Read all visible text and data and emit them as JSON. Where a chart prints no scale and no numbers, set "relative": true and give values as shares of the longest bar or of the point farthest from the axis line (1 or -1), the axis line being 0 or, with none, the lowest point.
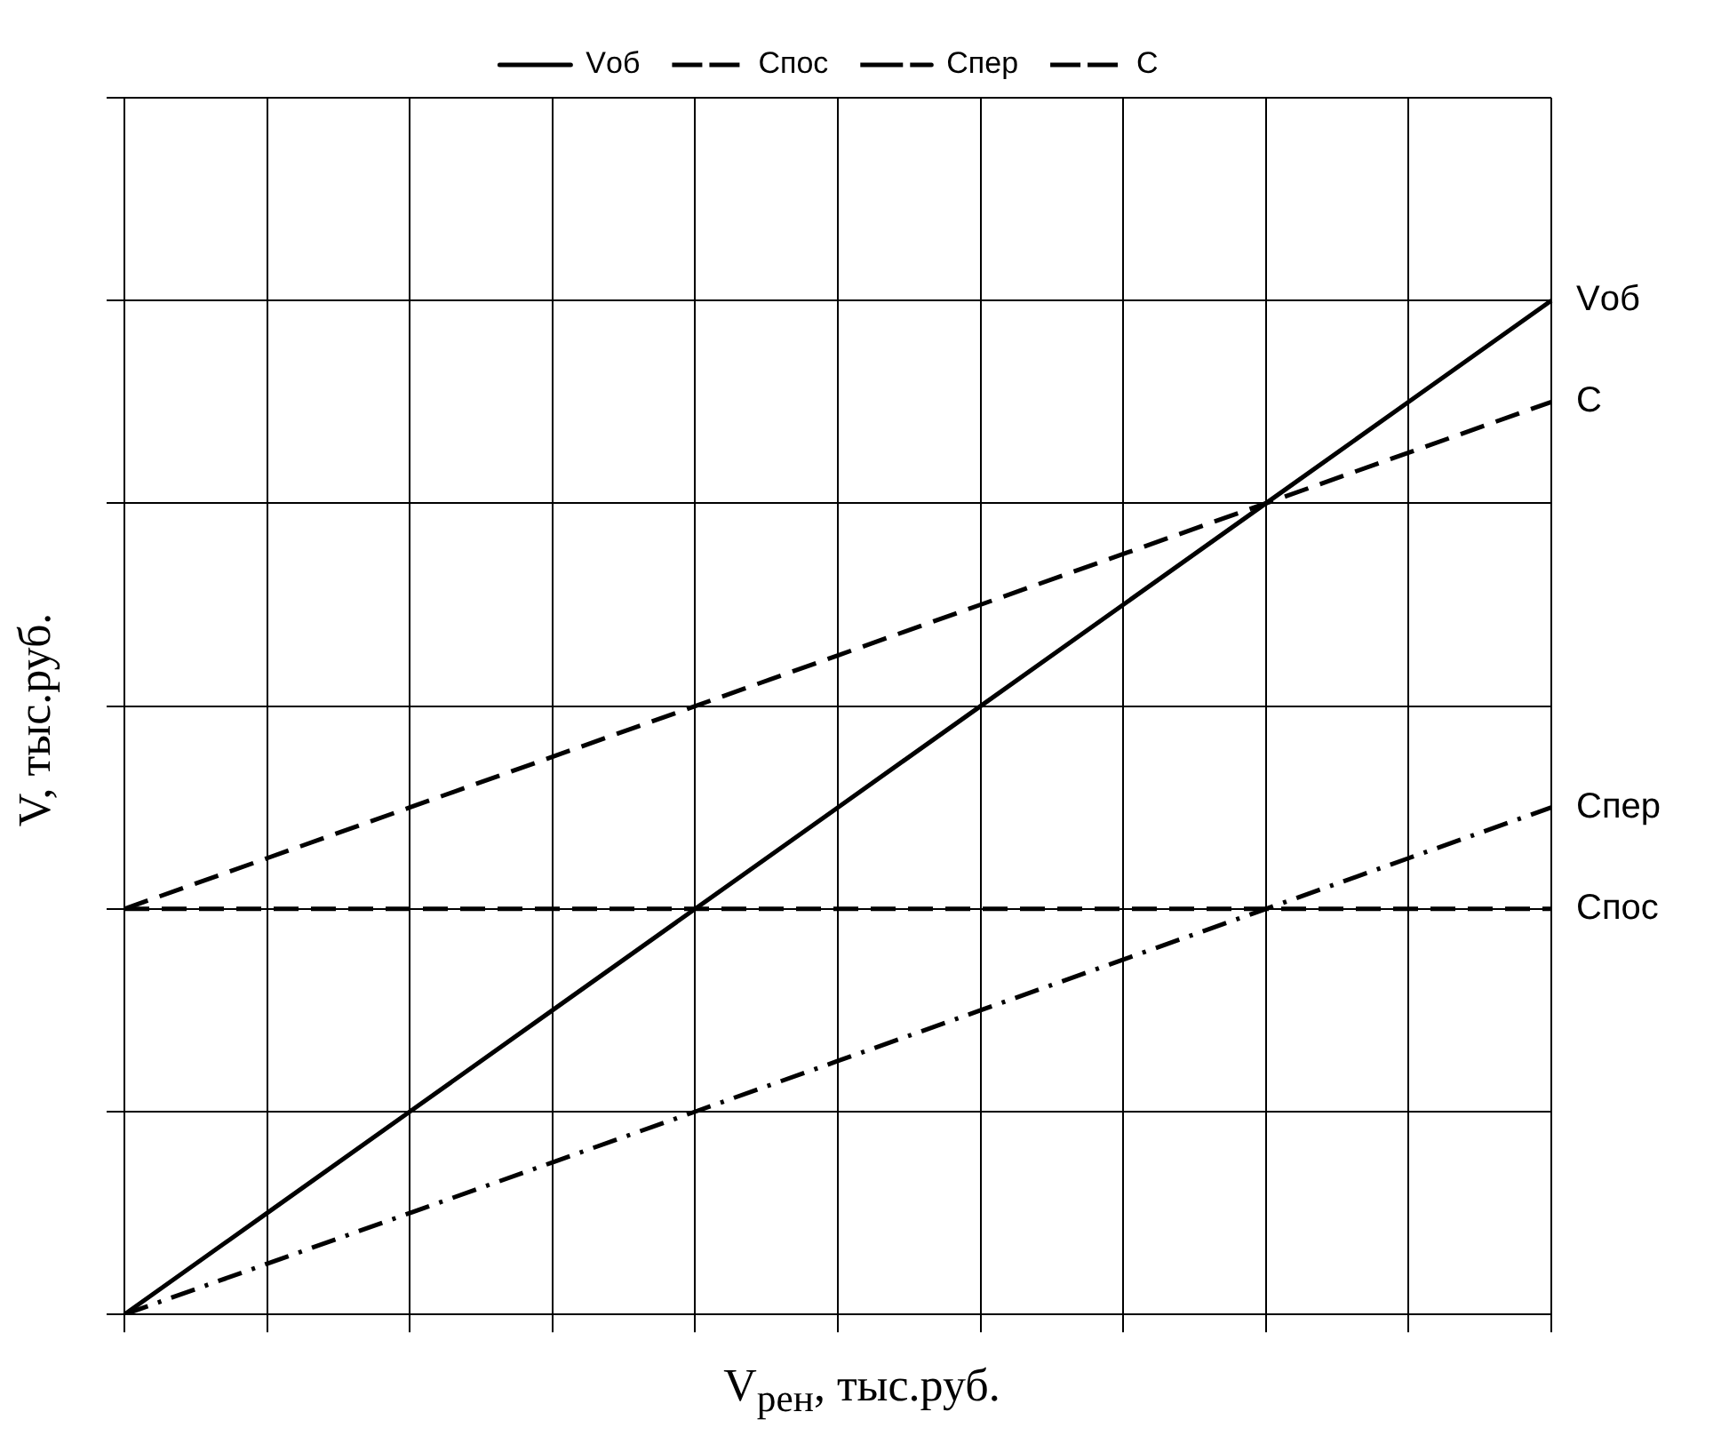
{
  "chart_data": {
    "type": "line",
    "relative": true,
    "xlabel": "V$_{рен}$, тыс.руб.",
    "ylabel": "V, тыс.руб.",
    "categories": [
      null,
      null,
      null,
      null,
      null,
      null,
      null,
      null,
      null,
      null,
      null
    ],
    "grid": true,
    "legend": "top",
    "marker": "none",
    "series": [
      {
        "name": "Vоб",
        "color": "#000000",
        "line_style": "solid",
        "values": [
          0,
          0.1,
          0.2,
          0.3,
          0.4,
          0.5,
          0.6,
          0.7,
          0.8,
          0.9,
          1
        ]
      },
      {
        "name": "Спос",
        "color": "#000000",
        "line_style": "dashed",
        "values": [
          0.4,
          0.4,
          0.4,
          0.4,
          0.4,
          0.4,
          0.4,
          0.4,
          0.4,
          0.4,
          0.4
        ]
      },
      {
        "name": "Спер",
        "color": "#000000",
        "line_style": "dashdot",
        "values": [
          0,
          0.05,
          0.1,
          0.15,
          0.2,
          0.25,
          0.3,
          0.35,
          0.4,
          0.45,
          0.5
        ]
      },
      {
        "name": "С",
        "color": "#000000",
        "line_style": "dashed",
        "values": [
          0.4,
          0.45,
          0.5,
          0.55,
          0.6,
          0.65,
          0.7,
          0.75,
          0.8,
          0.85,
          0.9
        ]
      }
    ]
  }
}
